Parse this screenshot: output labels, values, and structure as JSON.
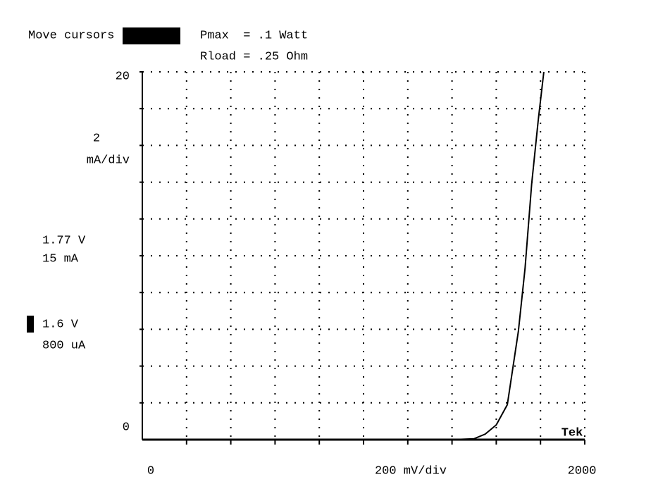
{
  "chart_data": {
    "type": "line",
    "header": {
      "prompt": "Move cursors",
      "pmax": "Pmax  = .1 Watt",
      "rload": "Rload = .25 Ohm"
    },
    "y_scale": "2",
    "y_scale_unit": "mA/div",
    "x_scale_label": "200 mV/div",
    "cursor1": {
      "voltage": "1.77 V",
      "current": "15 mA"
    },
    "cursor2": {
      "voltage": "1.6 V",
      "current": "800 uA"
    },
    "brand": "Tek",
    "x": [
      0,
      1400,
      1500,
      1550,
      1600,
      1650,
      1700,
      1730,
      1760,
      1790,
      1815
    ],
    "series": [
      {
        "color": "#000000",
        "values": [
          0,
          0,
          0.05,
          0.3,
          0.8,
          1.9,
          5.9,
          9.3,
          13.9,
          17.4,
          20
        ]
      }
    ],
    "xlim": [
      0,
      2000
    ],
    "ylim": [
      0,
      20
    ],
    "xticks": [
      0,
      2000
    ],
    "yticks": [
      0,
      20
    ],
    "xgrid": [
      200,
      400,
      600,
      800,
      1000,
      1200,
      1400,
      1600,
      1800,
      2000
    ],
    "ygrid": [
      2,
      4,
      6,
      8,
      10,
      12,
      14,
      16,
      18,
      20
    ],
    "grid": true
  }
}
